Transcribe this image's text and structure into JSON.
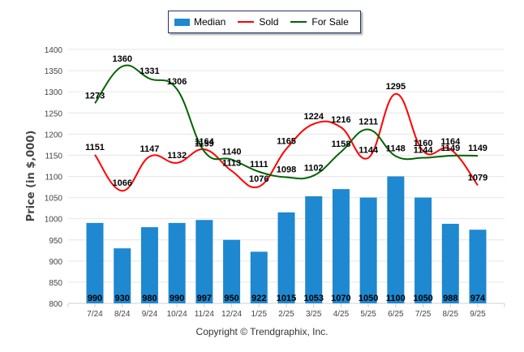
{
  "legend": {
    "items": [
      {
        "label": "Median",
        "kind": "bar",
        "color": "#1e88d0"
      },
      {
        "label": "Sold",
        "kind": "line",
        "color": "#ff0000"
      },
      {
        "label": "For Sale",
        "kind": "line",
        "color": "#006400"
      }
    ]
  },
  "footer": {
    "copyright": "Copyright © Trendgraphix, Inc."
  },
  "chart_data": {
    "type": "bar",
    "title": "",
    "xlabel": "",
    "ylabel": "Price (in $,000)",
    "ylim": [
      800,
      1400
    ],
    "yticks": [
      800,
      850,
      900,
      950,
      1000,
      1050,
      1100,
      1150,
      1200,
      1250,
      1300,
      1350,
      1400
    ],
    "grid": true,
    "legend_position": "top-center",
    "categories": [
      "7/24",
      "8/24",
      "9/24",
      "10/24",
      "11/24",
      "12/24",
      "1/25",
      "2/25",
      "3/25",
      "4/25",
      "5/25",
      "6/25",
      "7/25",
      "8/25",
      "9/25"
    ],
    "series": [
      {
        "name": "Median",
        "type": "bar",
        "color": "#1e88d0",
        "values": [
          990,
          930,
          980,
          990,
          997,
          950,
          922,
          1015,
          1053,
          1070,
          1050,
          1100,
          1050,
          988,
          974
        ]
      },
      {
        "name": "Sold",
        "type": "line",
        "color": "#ff0000",
        "values": [
          1151,
          1066,
          1147,
          1132,
          1164,
          1113,
          1076,
          1165,
          1224,
          1216,
          1144,
          1295,
          1160,
          1164,
          1079
        ]
      },
      {
        "name": "For Sale",
        "type": "line",
        "color": "#006400",
        "values": [
          1273,
          1360,
          1331,
          1306,
          1159,
          1140,
          1111,
          1098,
          1102,
          1158,
          1211,
          1148,
          1144,
          1149,
          1149
        ]
      }
    ]
  }
}
